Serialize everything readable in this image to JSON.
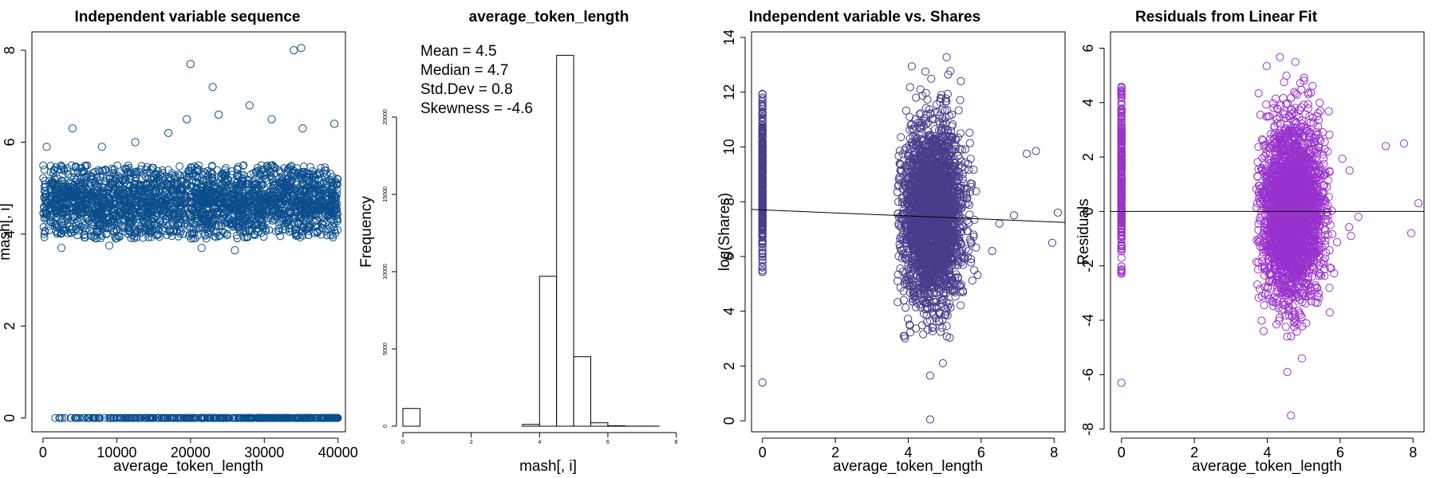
{
  "chart_data": [
    {
      "type": "scatter",
      "title": "Independent variable sequence",
      "xlabel": "average_token_length",
      "ylabel": "mash[, i]",
      "xlim": [
        -1500,
        41000
      ],
      "ylim": [
        -0.3,
        8.4
      ],
      "x_ticks": [
        0,
        10000,
        20000,
        30000,
        40000
      ],
      "y_ticks": [
        0,
        2,
        4,
        6,
        8
      ],
      "color": "#0b4e8c",
      "dense_band": {
        "x": [
          0,
          40000
        ],
        "y": [
          3.9,
          5.5
        ]
      },
      "zero_row": {
        "x": [
          1200,
          40000
        ],
        "y": 0
      },
      "outliers": [
        {
          "x": 500,
          "y": 5.9
        },
        {
          "x": 4000,
          "y": 6.3
        },
        {
          "x": 8000,
          "y": 5.9
        },
        {
          "x": 12500,
          "y": 6.0
        },
        {
          "x": 17000,
          "y": 6.2
        },
        {
          "x": 19500,
          "y": 6.5
        },
        {
          "x": 20000,
          "y": 7.7
        },
        {
          "x": 23000,
          "y": 7.2
        },
        {
          "x": 23800,
          "y": 6.6
        },
        {
          "x": 28000,
          "y": 6.8
        },
        {
          "x": 31000,
          "y": 6.5
        },
        {
          "x": 34000,
          "y": 8.0
        },
        {
          "x": 35000,
          "y": 8.05
        },
        {
          "x": 35200,
          "y": 6.3
        },
        {
          "x": 39500,
          "y": 6.4
        },
        {
          "x": 2500,
          "y": 3.7
        },
        {
          "x": 9000,
          "y": 3.75
        },
        {
          "x": 21500,
          "y": 3.7
        },
        {
          "x": 26000,
          "y": 3.65
        }
      ]
    },
    {
      "type": "histogram",
      "title": "average_token_length",
      "xlabel": "mash[, i]",
      "ylabel": "Frequency",
      "xlim": [
        0,
        8.5
      ],
      "ylim": [
        0,
        25000
      ],
      "x_ticks": [
        0,
        2,
        4,
        6,
        8
      ],
      "y_ticks": [
        0,
        5000,
        10000,
        15000,
        20000
      ],
      "bins": [
        {
          "x0": 0.0,
          "x1": 0.5,
          "count": 1150
        },
        {
          "x0": 0.5,
          "x1": 1.0,
          "count": 0
        },
        {
          "x0": 1.0,
          "x1": 1.5,
          "count": 0
        },
        {
          "x0": 1.5,
          "x1": 2.0,
          "count": 0
        },
        {
          "x0": 2.0,
          "x1": 2.5,
          "count": 0
        },
        {
          "x0": 2.5,
          "x1": 3.0,
          "count": 0
        },
        {
          "x0": 3.0,
          "x1": 3.5,
          "count": 0
        },
        {
          "x0": 3.5,
          "x1": 4.0,
          "count": 120
        },
        {
          "x0": 4.0,
          "x1": 4.5,
          "count": 9700
        },
        {
          "x0": 4.5,
          "x1": 5.0,
          "count": 24000
        },
        {
          "x0": 5.0,
          "x1": 5.5,
          "count": 4500
        },
        {
          "x0": 5.5,
          "x1": 6.0,
          "count": 220
        },
        {
          "x0": 6.0,
          "x1": 6.5,
          "count": 30
        },
        {
          "x0": 6.5,
          "x1": 7.0,
          "count": 5
        },
        {
          "x0": 7.0,
          "x1": 7.5,
          "count": 3
        },
        {
          "x0": 7.5,
          "x1": 8.0,
          "count": 2
        },
        {
          "x0": 8.0,
          "x1": 8.5,
          "count": 2
        }
      ],
      "stats": [
        "Mean = 4.5",
        "Median = 4.7",
        "Std.Dev = 0.8",
        "Skewness = -4.6"
      ]
    },
    {
      "type": "scatter",
      "title": "Independent variable vs. Shares",
      "xlabel": "average_token_length",
      "ylabel": "log(Shares)",
      "xlim": [
        -0.3,
        8.3
      ],
      "ylim": [
        -0.4,
        14.2
      ],
      "x_ticks": [
        0,
        2,
        4,
        6,
        8
      ],
      "y_ticks": [
        0,
        2,
        4,
        6,
        8,
        10,
        12,
        14
      ],
      "color": "#483d8b",
      "zero_column": {
        "x": 0,
        "y": [
          5.4,
          12.2
        ]
      },
      "cloud": {
        "x": [
          3.7,
          6.4
        ],
        "y": [
          3.0,
          13.7
        ],
        "center_x": 4.65,
        "center_y": 7.5
      },
      "fit_line": {
        "intercept": 7.7,
        "slope": -0.055
      },
      "outliers": [
        {
          "x": 0,
          "y": 1.4
        },
        {
          "x": 4.6,
          "y": 0.05
        },
        {
          "x": 4.6,
          "y": 1.65
        },
        {
          "x": 4.95,
          "y": 2.1
        },
        {
          "x": 3.9,
          "y": 3.1
        },
        {
          "x": 7.5,
          "y": 9.85
        },
        {
          "x": 7.25,
          "y": 9.75
        },
        {
          "x": 7.95,
          "y": 6.5
        },
        {
          "x": 8.1,
          "y": 7.6
        },
        {
          "x": 6.5,
          "y": 7.2
        },
        {
          "x": 6.9,
          "y": 7.5
        },
        {
          "x": 6.3,
          "y": 6.2
        }
      ]
    },
    {
      "type": "scatter",
      "title": "Residuals from Linear Fit",
      "xlabel": "average_token_length",
      "ylabel": "Residuals",
      "xlim": [
        -0.3,
        8.3
      ],
      "ylim": [
        -8.1,
        6.6
      ],
      "x_ticks": [
        0,
        2,
        4,
        6,
        8
      ],
      "y_ticks": [
        -8,
        -6,
        -4,
        -2,
        0,
        2,
        4,
        6
      ],
      "color": "#9932cc",
      "zero_column": {
        "x": 0,
        "y": [
          -2.3,
          4.6
        ]
      },
      "cloud": {
        "x": [
          3.7,
          6.4
        ],
        "y": [
          -4.6,
          6.2
        ],
        "center_x": 4.65,
        "center_y": 0.0
      },
      "fit_line": {
        "intercept": 0,
        "slope": 0
      },
      "outliers": [
        {
          "x": 0,
          "y": -6.3
        },
        {
          "x": 4.65,
          "y": -7.5
        },
        {
          "x": 4.55,
          "y": -5.9
        },
        {
          "x": 4.95,
          "y": -5.4
        },
        {
          "x": 3.9,
          "y": -4.4
        },
        {
          "x": 7.25,
          "y": 2.4
        },
        {
          "x": 7.75,
          "y": 2.5
        },
        {
          "x": 8.15,
          "y": 0.3
        },
        {
          "x": 7.95,
          "y": -0.8
        },
        {
          "x": 6.5,
          "y": -0.2
        },
        {
          "x": 6.3,
          "y": -0.9
        }
      ]
    }
  ]
}
